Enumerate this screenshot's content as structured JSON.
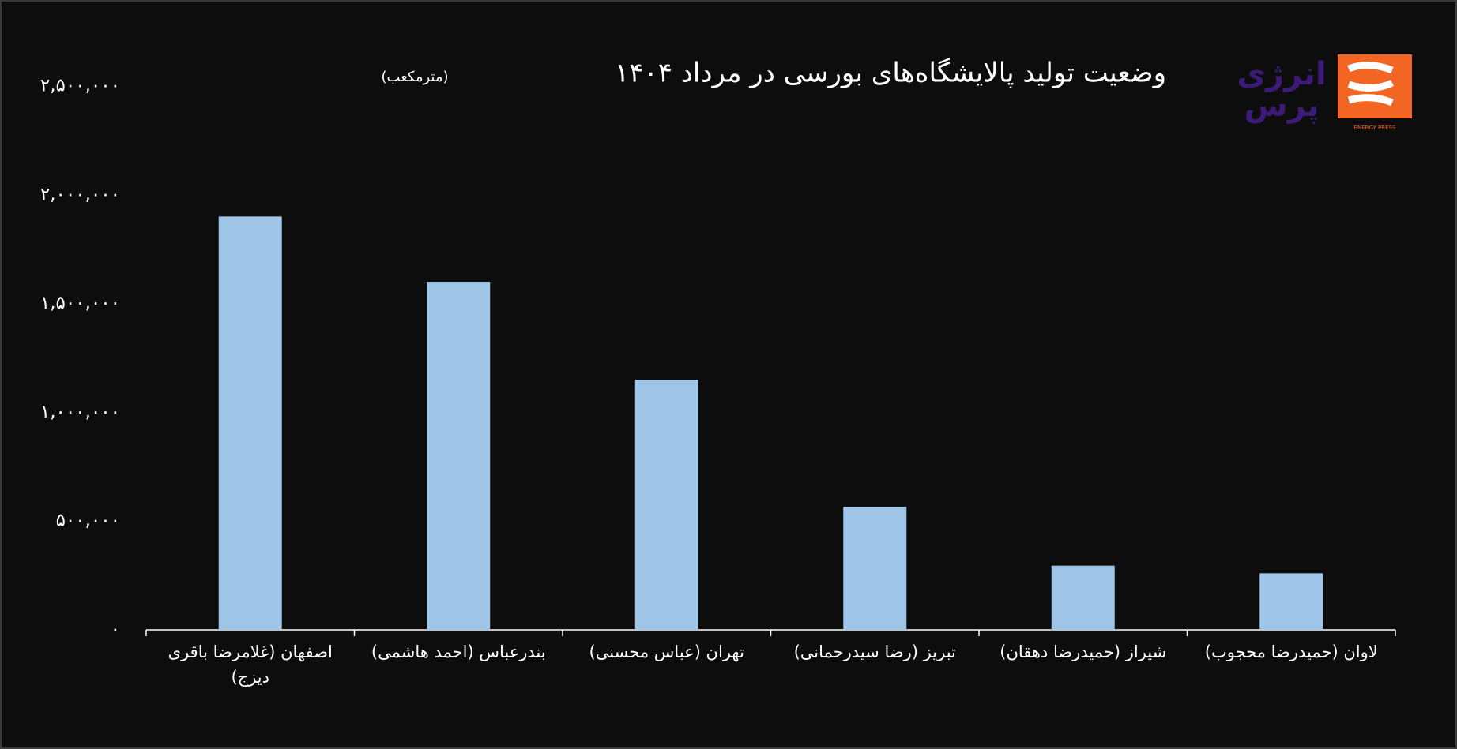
{
  "chart_data": {
    "type": "bar",
    "title": "وضعیت تولید پالایشگاه‌های بورسی در مرداد ۱۴۰۴",
    "subtitle": "(مترمکعب)",
    "categories": [
      "اصفهان (غلامرضا باقری دیزج)",
      "بندرعباس (احمد هاشمی)",
      "تهران (عباس محسنی)",
      "تبریز (رضا سیدرحمانی)",
      "شیراز (حمیدرضا دهقان)",
      "لاوان (حمیدرضا محجوب)"
    ],
    "values": [
      1900000,
      1600000,
      1150000,
      565000,
      295000,
      260000
    ],
    "color": "#9fc5e8",
    "ylim": [
      0,
      2500000
    ],
    "yticks": [
      {
        "value": 0,
        "label": "۰"
      },
      {
        "value": 500000,
        "label": "۵۰۰,۰۰۰"
      },
      {
        "value": 1000000,
        "label": "۱,۰۰۰,۰۰۰"
      },
      {
        "value": 1500000,
        "label": "۱,۵۰۰,۰۰۰"
      },
      {
        "value": 2000000,
        "label": "۲,۰۰۰,۰۰۰"
      },
      {
        "value": 2500000,
        "label": "۲,۵۰۰,۰۰۰"
      }
    ],
    "grid": false
  },
  "logo": {
    "line1": "انرژی",
    "line2": "پرس",
    "caption": "ENERGY PRESS"
  }
}
